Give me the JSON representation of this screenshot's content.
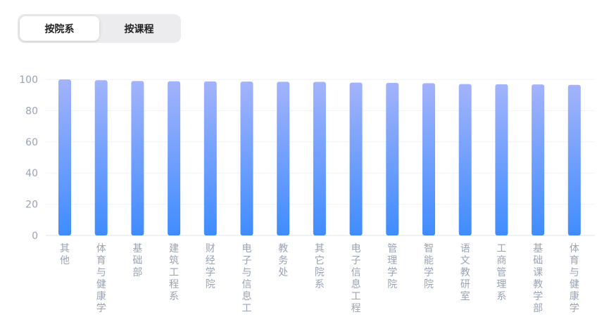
{
  "toggle": {
    "options": [
      {
        "label": "按院系",
        "active": true
      },
      {
        "label": "按课程",
        "active": false
      }
    ]
  },
  "colors": {
    "bar_top": "#a3b3fb",
    "bar_bottom": "#3f8cff",
    "tick_text": "#9aa3b5",
    "grid": "#f0f2f5",
    "axis": "#dfe3ea",
    "segment_bg": "#ececef"
  },
  "chart_data": {
    "type": "bar",
    "categories": [
      "其他",
      "体育与健康学",
      "基础部",
      "建筑工程系",
      "财经学院",
      "电子与信息工",
      "教务处",
      "其它院系",
      "电子信息工程",
      "管理学院",
      "智能学院",
      "语文教研室",
      "工商管理系",
      "基础课教学部",
      "体育与健康学"
    ],
    "values": [
      100,
      99.5,
      99,
      98.8,
      98.7,
      98.6,
      98.5,
      98.4,
      98,
      97.8,
      97.6,
      97,
      96.9,
      96.8,
      96.5
    ],
    "ylim": [
      0,
      100
    ],
    "yticks": [
      0,
      20,
      40,
      60,
      80,
      100
    ],
    "title": "",
    "xlabel": "",
    "ylabel": "",
    "grid": true,
    "legend": "none"
  }
}
